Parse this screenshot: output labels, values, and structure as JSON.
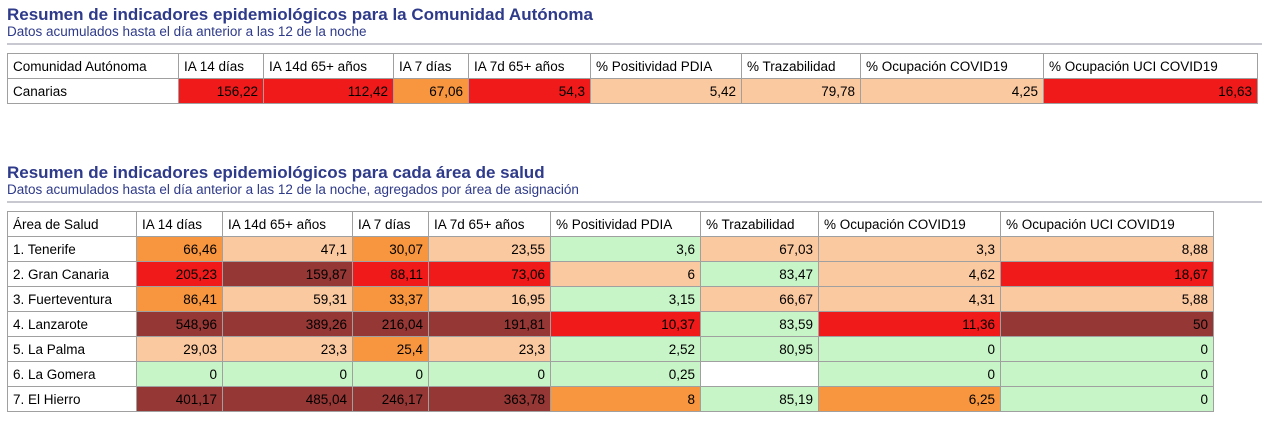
{
  "section1": {
    "title": "Resumen de indicadores epidemiológicos para la Comunidad Autónoma",
    "subtitle": "Datos acumulados hasta el día anterior a las 12 de la noche",
    "table": {
      "header": [
        "Comunidad Autónoma",
        "IA 14 días",
        "IA 14d 65+ años",
        "IA 7 días",
        "IA 7d 65+ años",
        "% Positividad PDIA",
        "% Trazabilidad",
        "% Ocupación COVID19",
        "% Ocupación UCI COVID19"
      ],
      "rows": [
        [
          "Canarias",
          "156,22",
          "112,42",
          "67,06",
          "54,3",
          "5,42",
          "79,78",
          "4,25",
          "16,63"
        ]
      ],
      "colors": [
        [
          "#ffffff",
          "#f01a1a",
          "#f01a1a",
          "#f7963e",
          "#f01a1a",
          "#fbc9a0",
          "#fbc9a0",
          "#fbc9a0",
          "#f01a1a"
        ]
      ]
    }
  },
  "section2": {
    "title": "Resumen de indicadores epidemiológicos para cada área de salud",
    "subtitle": "Datos acumulados hasta el día anterior a las 12 de la noche, agregados por área de asignación",
    "table": {
      "header": [
        "Área de Salud",
        "IA 14 días",
        "IA 14d 65+ años",
        "IA 7 días",
        "IA 7d 65+ años",
        "% Positividad PDIA",
        "% Trazabilidad",
        "% Ocupación COVID19",
        "% Ocupación UCI COVID19"
      ],
      "rows": [
        [
          "1. Tenerife",
          "66,46",
          "47,1",
          "30,07",
          "23,55",
          "3,6",
          "67,03",
          "3,3",
          "8,88"
        ],
        [
          "2. Gran Canaria",
          "205,23",
          "159,87",
          "88,11",
          "73,06",
          "6",
          "83,47",
          "4,62",
          "18,67"
        ],
        [
          "3. Fuerteventura",
          "86,41",
          "59,31",
          "33,37",
          "16,95",
          "3,15",
          "66,67",
          "4,31",
          "5,88"
        ],
        [
          "4. Lanzarote",
          "548,96",
          "389,26",
          "216,04",
          "191,81",
          "10,37",
          "83,59",
          "11,36",
          "50"
        ],
        [
          "5. La Palma",
          "29,03",
          "23,3",
          "25,4",
          "23,3",
          "2,52",
          "80,95",
          "0",
          "0"
        ],
        [
          "6. La Gomera",
          "0",
          "0",
          "0",
          "0",
          "0,25",
          null,
          "0",
          "0"
        ],
        [
          "7. El Hierro",
          "401,17",
          "485,04",
          "246,17",
          "363,78",
          "8",
          "85,19",
          "6,25",
          "0"
        ]
      ],
      "colors": [
        [
          "#ffffff",
          "#f7963e",
          "#fbc9a0",
          "#f7963e",
          "#fbc9a0",
          "#c8f5c8",
          "#fbc9a0",
          "#fbc9a0",
          "#fbc9a0"
        ],
        [
          "#ffffff",
          "#f01a1a",
          "#953735",
          "#f01a1a",
          "#f01a1a",
          "#fbc9a0",
          "#c8f5c8",
          "#fbc9a0",
          "#f01a1a"
        ],
        [
          "#ffffff",
          "#f7963e",
          "#fbc9a0",
          "#f7963e",
          "#fbc9a0",
          "#c8f5c8",
          "#fbc9a0",
          "#fbc9a0",
          "#fbc9a0"
        ],
        [
          "#ffffff",
          "#953735",
          "#953735",
          "#953735",
          "#953735",
          "#f01a1a",
          "#c8f5c8",
          "#f01a1a",
          "#953735"
        ],
        [
          "#ffffff",
          "#fbc9a0",
          "#fbc9a0",
          "#f7963e",
          "#fbc9a0",
          "#c8f5c8",
          "#c8f5c8",
          "#c8f5c8",
          "#c8f5c8"
        ],
        [
          "#ffffff",
          "#c8f5c8",
          "#c8f5c8",
          "#c8f5c8",
          "#c8f5c8",
          "#c8f5c8",
          "#ffffff",
          "#c8f5c8",
          "#c8f5c8"
        ],
        [
          "#ffffff",
          "#953735",
          "#953735",
          "#953735",
          "#953735",
          "#f7963e",
          "#c8f5c8",
          "#f7963e",
          "#c8f5c8"
        ]
      ]
    }
  }
}
